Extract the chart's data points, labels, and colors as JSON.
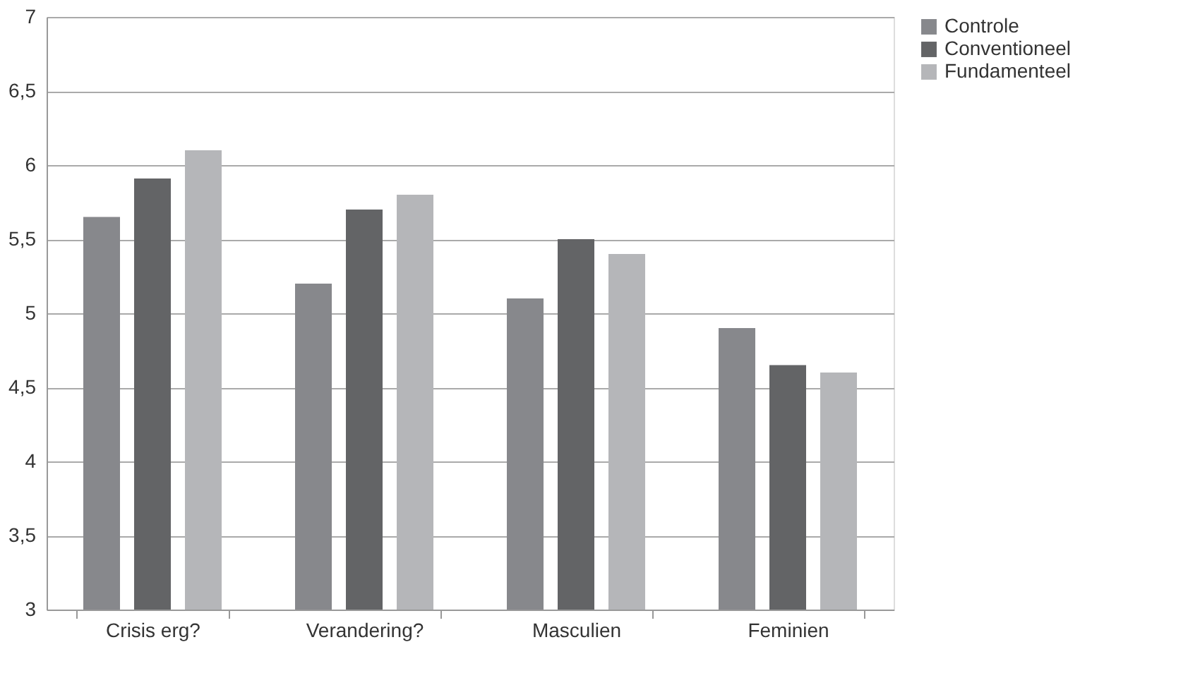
{
  "chart_data": {
    "type": "bar",
    "categories": [
      "Crisis erg?",
      "Verandering?",
      "Masculien",
      "Feminien"
    ],
    "series": [
      {
        "name": "Controle",
        "color": "#87888c",
        "values": [
          5.65,
          5.2,
          5.1,
          4.9
        ]
      },
      {
        "name": "Conventioneel",
        "color": "#636466",
        "values": [
          5.91,
          5.7,
          5.5,
          4.65
        ]
      },
      {
        "name": "Fundamenteel",
        "color": "#b5b6b9",
        "values": [
          6.1,
          5.8,
          5.4,
          4.6
        ]
      }
    ],
    "ylim": [
      3,
      7
    ],
    "yticks": [
      3,
      {
        "value": 3.5,
        "label": "3,5"
      },
      4,
      {
        "value": 4.5,
        "label": "4,5"
      },
      5,
      {
        "value": 5.5,
        "label": "5,5"
      },
      6,
      {
        "value": 6.5,
        "label": "6,5"
      },
      7
    ],
    "grid": "y",
    "legend": "right"
  }
}
